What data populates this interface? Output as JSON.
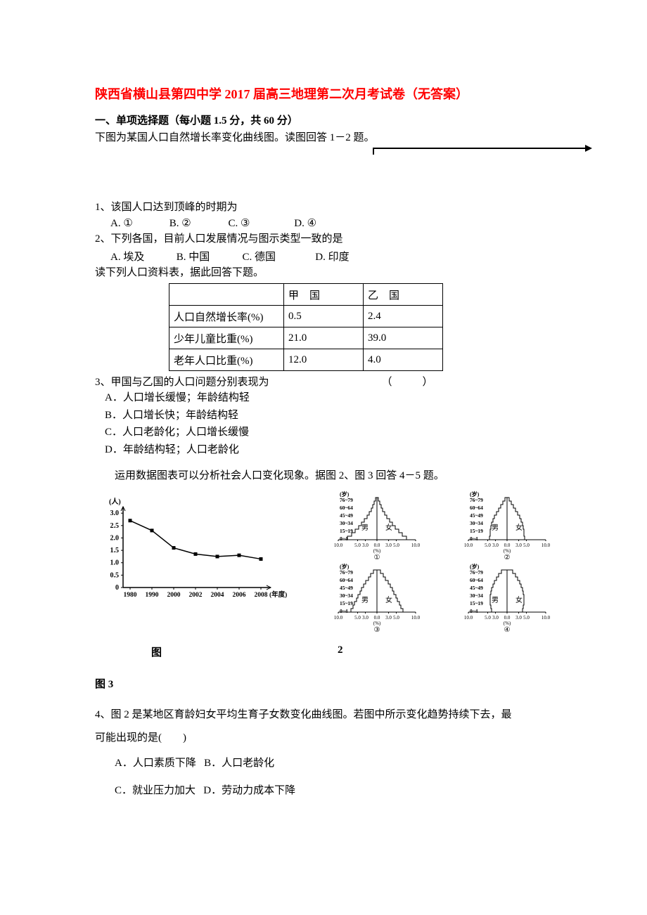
{
  "doc": {
    "title": "陕西省横山县第四中学 2017 届高三地理第二次月考试卷（无答案）",
    "section_head": "一、单项选择题（每小题 1.5 分，共 60 分）",
    "intro1": "下图为某国人口自然增长率变化曲线图。读图回答 1－2 题。",
    "q1": "1、该国人口达到顶峰的时期为",
    "q1_opts": {
      "a": "A. ①",
      "b": "B. ②",
      "c": "C. ③",
      "d": "D. ④"
    },
    "q2": "2、下列各国，目前人口发展情况与图示类型一致的是",
    "q2_opts": {
      "a": "A. 埃及",
      "b": "B. 中国",
      "c": "C. 德国",
      "d": "D. 印度"
    },
    "table_intro": "读下列人口资料表，据此回答下题。",
    "table": {
      "header": {
        "blank": "",
        "col1": "甲　国",
        "col2": "乙　国"
      },
      "rows": [
        {
          "label": "人口自然增长率(%)",
          "c1": "0.5",
          "c2": "2.4"
        },
        {
          "label": "少年儿童比重(%)",
          "c1": "21.0",
          "c2": "39.0"
        },
        {
          "label": "老年人口比重(%)",
          "c1": "12.0",
          "c2": "4.0"
        }
      ]
    },
    "q3": "3、甲国与乙国的人口问题分别表现为",
    "q3_paren": "（　）",
    "q3_opts": {
      "a": "A．人口增长缓慢；年龄结构轻",
      "b": "B．人口增长快；年龄结构轻",
      "c": "C．人口老龄化；人口增长缓慢",
      "d": "D．年龄结构轻；人口老龄化"
    },
    "figs_intro": "运用数据图表可以分析社会人口变化现象。据图 2、图 3 回答 4－5 题。",
    "fig2": {
      "y_label": "(人)",
      "y_ticks": [
        "3.0",
        "2.5",
        "2.0",
        "1.5",
        "1.0",
        "0.5",
        "0"
      ],
      "x_ticks": [
        "1980",
        "1990",
        "2000",
        "2002",
        "2004",
        "2006",
        "2008"
      ],
      "x_label": "(年度)",
      "points_y": [
        2.7,
        2.3,
        1.6,
        1.35,
        1.25,
        1.3,
        1.15
      ],
      "line_color": "#000000",
      "background_color": "#ffffff"
    },
    "fig3": {
      "age_labels": [
        "76~79",
        "60~64",
        "45~49",
        "30~34",
        "15~19",
        "0~4"
      ],
      "age_unit": "(岁)",
      "x_ticks": [
        "10.0",
        "5.0",
        "3.0",
        "0.0",
        "3.0",
        "5.0",
        "10.0"
      ],
      "x_unit": "(%)",
      "male": "男",
      "female": "女",
      "circled": [
        "①",
        "②",
        "③",
        "④"
      ]
    },
    "fig_label2": "图",
    "fig_label2_num": "2",
    "fig_label3": "图 3",
    "q4": "4、图 2 是某地区育龄妇女平均生育子女数变化曲线图。若图中所示变化趋势持续下去，最",
    "q4b": "可能出现的是(　　)",
    "q4_opts": {
      "a": "A．人口素质下降",
      "b": "B．人口老龄化",
      "c": "C．就业压力加大",
      "d": "D．劳动力成本下降"
    }
  }
}
